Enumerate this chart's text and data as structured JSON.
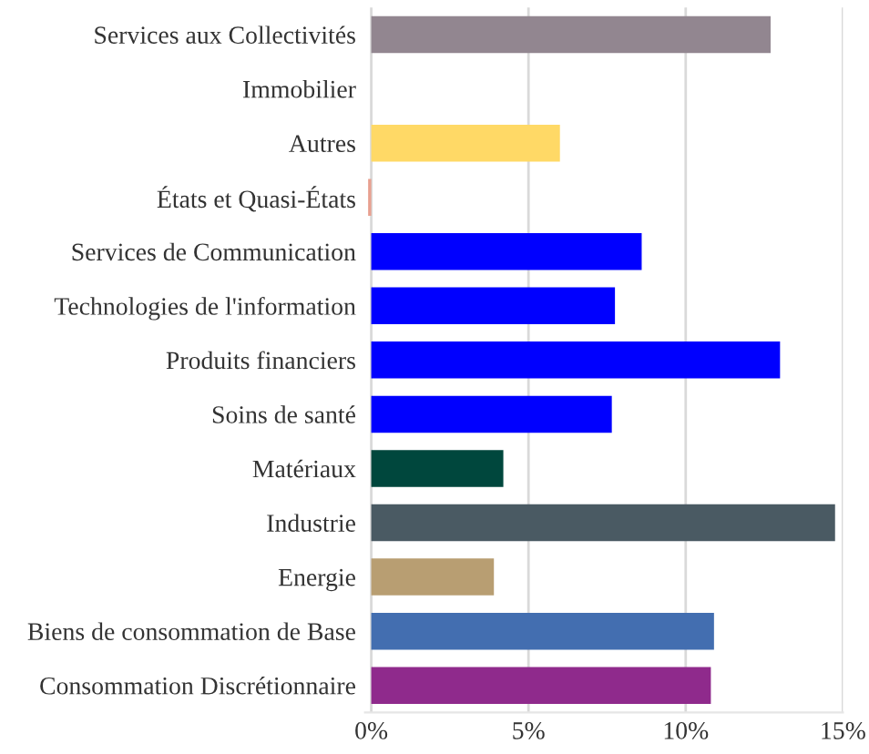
{
  "chart_data": {
    "type": "bar",
    "orientation": "horizontal",
    "categories": [
      "Services aux Collectivités",
      "Immobilier",
      "Autres",
      "États et Quasi-États",
      "Services de Communication",
      "Technologies de l'information",
      "Produits financiers",
      "Soins de santé",
      "Matériaux",
      "Industrie",
      "Energie",
      "Biens de consommation de Base",
      "Consommation Discrétionnaire"
    ],
    "values": [
      12.7,
      0,
      6.0,
      -0.1,
      8.6,
      7.75,
      13.0,
      7.65,
      4.2,
      14.75,
      3.9,
      10.9,
      10.8
    ],
    "colors": [
      "#928690",
      "#cccccc",
      "#ffd966",
      "#e8a090",
      "#0000ff",
      "#0000ff",
      "#0000ff",
      "#0000ff",
      "#00473d",
      "#4a5a63",
      "#b89e72",
      "#436eb0",
      "#8f2a8c"
    ],
    "xlim": [
      -0.2,
      15
    ],
    "xticks": [
      {
        "value": 0,
        "label": "0%"
      },
      {
        "value": 5,
        "label": "5%"
      },
      {
        "value": 10,
        "label": "10%"
      },
      {
        "value": 15,
        "label": "15%"
      }
    ],
    "grid": "x"
  }
}
